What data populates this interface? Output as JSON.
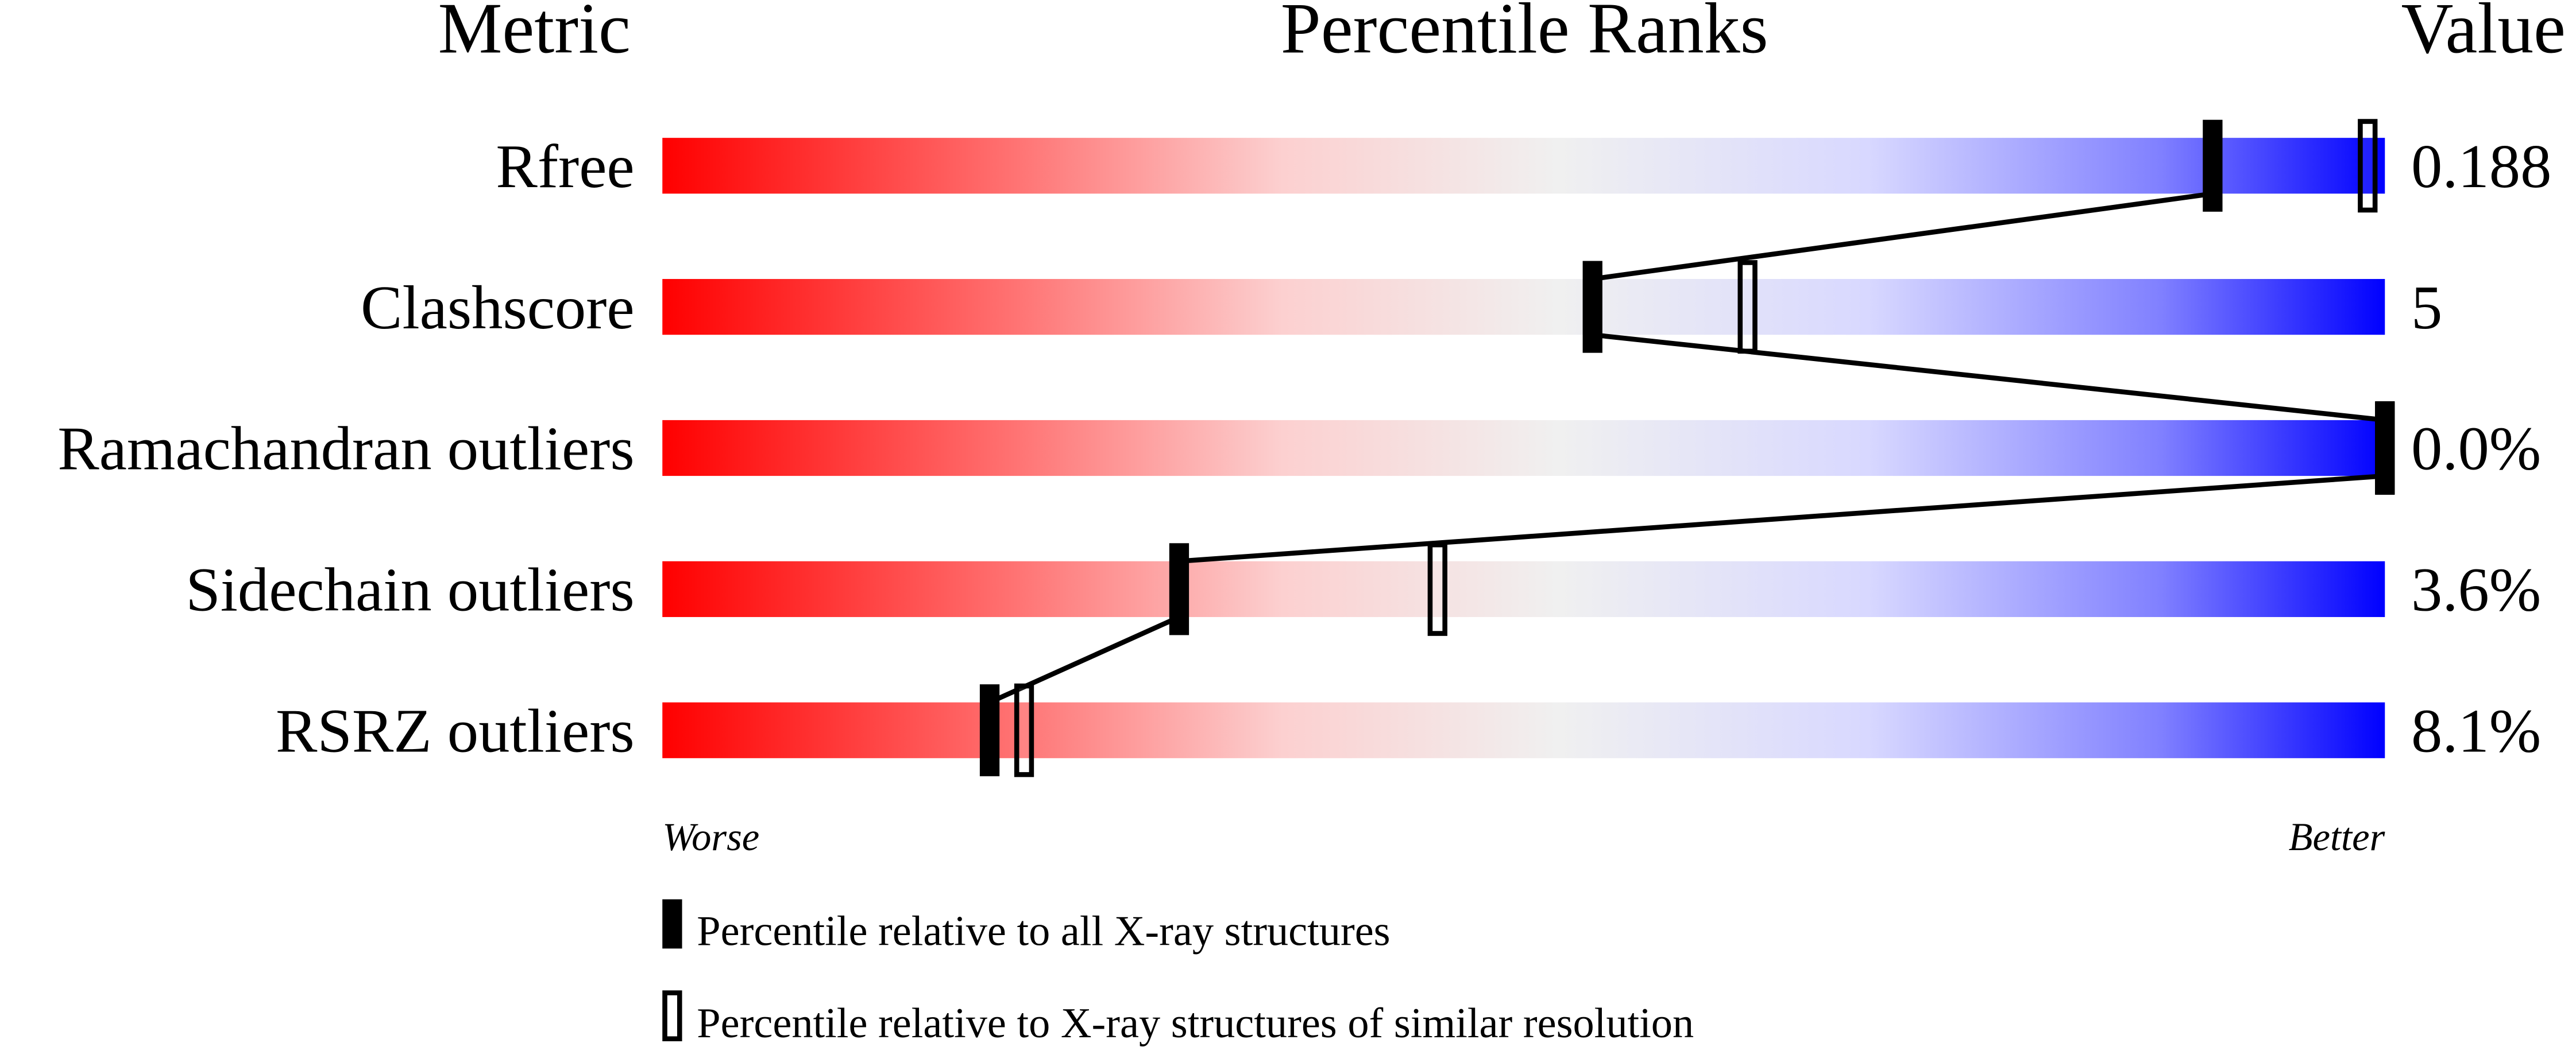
{
  "chart_data": {
    "type": "bar",
    "title": "",
    "headers": {
      "metric": "Metric",
      "ranks": "Percentile Ranks",
      "value": "Value"
    },
    "axis_ends": {
      "left": "Worse",
      "right": "Better"
    },
    "xlim": [
      0,
      100
    ],
    "gradient_colors": [
      "#ff0000",
      "#ff7070",
      "#fcd0d0",
      "#f0f0f0",
      "#d8d8ff",
      "#8080ff",
      "#0000ff"
    ],
    "metrics": [
      {
        "name": "Rfree",
        "value": "0.188",
        "percentile_all": 90,
        "percentile_similar": 99
      },
      {
        "name": "Clashscore",
        "value": "5",
        "percentile_all": 54,
        "percentile_similar": 63
      },
      {
        "name": "Ramachandran outliers",
        "value": "0.0%",
        "percentile_all": 100,
        "percentile_similar": 100
      },
      {
        "name": "Sidechain outliers",
        "value": "3.6%",
        "percentile_all": 30,
        "percentile_similar": 45
      },
      {
        "name": "RSRZ outliers",
        "value": "8.1%",
        "percentile_all": 19,
        "percentile_similar": 21
      }
    ],
    "legend": [
      {
        "marker": "filled",
        "label": "Percentile relative to all X-ray structures"
      },
      {
        "marker": "hollow",
        "label": "Percentile relative to X-ray structures of similar resolution"
      }
    ]
  }
}
